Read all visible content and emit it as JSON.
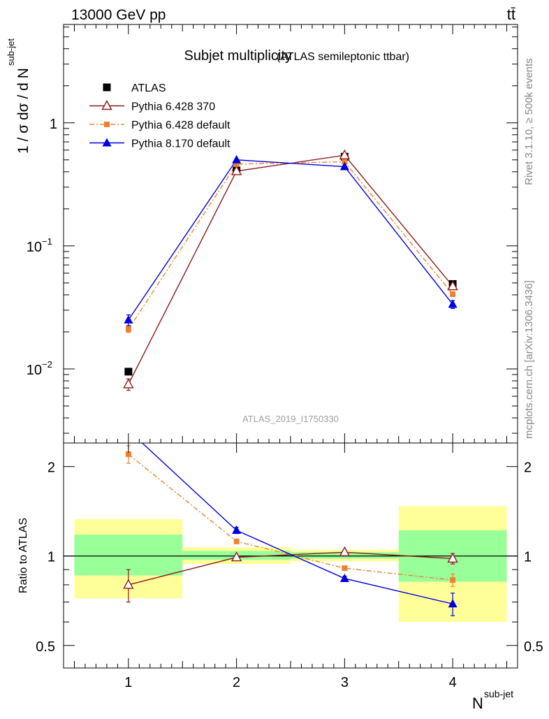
{
  "header": {
    "energy_label": "13000 GeV pp",
    "process_label": "tt̄"
  },
  "chart_data": [
    {
      "type": "line",
      "title": "Subjet multiplicity",
      "subtitle": "(ATLAS semileptonic ttbar)",
      "analysis_label": "ATLAS_2019_I1750330",
      "side_label_top": "Rivet 3.1.10, ≥ 500k events",
      "side_label_bottom": "mcplots.cern.ch [arXiv:1306.3436]",
      "ylabel": "1 / σ dσ / d N",
      "ylabel_sup": "sub-jet",
      "yscale": "log",
      "ylim": [
        0.0025,
        6.3
      ],
      "xlim": [
        0.4,
        4.6
      ],
      "y_ticks": [
        {
          "value": 0.01,
          "base": "10",
          "exp": "−2"
        },
        {
          "value": 0.1,
          "base": "10",
          "exp": "−1"
        },
        {
          "value": 1,
          "base": "1",
          "exp": ""
        }
      ],
      "legend": "top-left",
      "x": [
        1,
        2,
        3,
        4
      ],
      "series": [
        {
          "name": "ATLAS",
          "color": "#000000",
          "marker": "square",
          "values": [
            0.0095,
            0.41,
            0.53,
            0.049
          ],
          "err": [
            0.0004,
            0.01,
            0.01,
            0.002
          ]
        },
        {
          "name": "Pythia 6.428 370",
          "color": "#8b1a1a",
          "marker": "triangle-open",
          "dash": "",
          "values": [
            0.0075,
            0.405,
            0.545,
            0.047
          ],
          "err": [
            0.0008,
            0.008,
            0.008,
            0.002
          ]
        },
        {
          "name": "Pythia 6.428 default",
          "color": "#f08030",
          "marker": "square-small",
          "dash": "7 3 2 3",
          "values": [
            0.021,
            0.462,
            0.482,
            0.0405
          ],
          "err": [
            0.0012,
            0.008,
            0.008,
            0.0015
          ]
        },
        {
          "name": "Pythia 8.170 default",
          "color": "#0000dd",
          "marker": "triangle",
          "dash": "",
          "values": [
            0.025,
            0.5,
            0.44,
            0.0335
          ],
          "err": [
            0.0025,
            0.008,
            0.008,
            0.0025
          ]
        }
      ]
    },
    {
      "type": "line",
      "ylabel": "Ratio to ATLAS",
      "xlabel": "N",
      "xlabel_sup": "sub-jet",
      "yscale": "log",
      "ylim": [
        0.42,
        2.4
      ],
      "xlim": [
        0.4,
        4.6
      ],
      "x_ticks": [
        "1",
        "2",
        "3",
        "4"
      ],
      "y_ticks": [
        {
          "value": 0.5,
          "label": "0.5"
        },
        {
          "value": 1,
          "label": "1"
        },
        {
          "value": 2,
          "label": "2"
        }
      ],
      "bands": [
        {
          "x0": 0.5,
          "x1": 1.5,
          "yellow": [
            0.72,
            1.33
          ],
          "green": [
            0.86,
            1.18
          ]
        },
        {
          "x0": 1.5,
          "x1": 2.5,
          "yellow": [
            0.94,
            1.07
          ],
          "green": [
            0.97,
            1.04
          ]
        },
        {
          "x0": 2.5,
          "x1": 3.5,
          "yellow": [
            0.96,
            1.05
          ],
          "green": [
            0.98,
            1.03
          ]
        },
        {
          "x0": 3.5,
          "x1": 4.5,
          "yellow": [
            0.6,
            1.47
          ],
          "green": [
            0.82,
            1.22
          ]
        }
      ],
      "band_colors": {
        "yellow": "#ffff99",
        "green": "#99ff99"
      },
      "series": [
        {
          "name": "Pythia 6.428 370",
          "color": "#8b1a1a",
          "marker": "triangle-open",
          "dash": "",
          "values": [
            0.8,
            0.99,
            1.03,
            0.98
          ],
          "err": [
            0.1,
            0.015,
            0.015,
            0.04
          ]
        },
        {
          "name": "Pythia 6.428 default",
          "color": "#f08030",
          "marker": "square-small",
          "dash": "7 3 2 3",
          "values": [
            2.2,
            1.12,
            0.91,
            0.83
          ],
          "err": [
            0.15,
            0.015,
            0.015,
            0.04
          ]
        },
        {
          "name": "Pythia 8.170 default",
          "color": "#0000dd",
          "marker": "triangle",
          "dash": "",
          "values": [
            2.65,
            1.22,
            0.84,
            0.69
          ],
          "err": [
            0.1,
            0.03,
            0.015,
            0.06
          ]
        }
      ]
    }
  ]
}
